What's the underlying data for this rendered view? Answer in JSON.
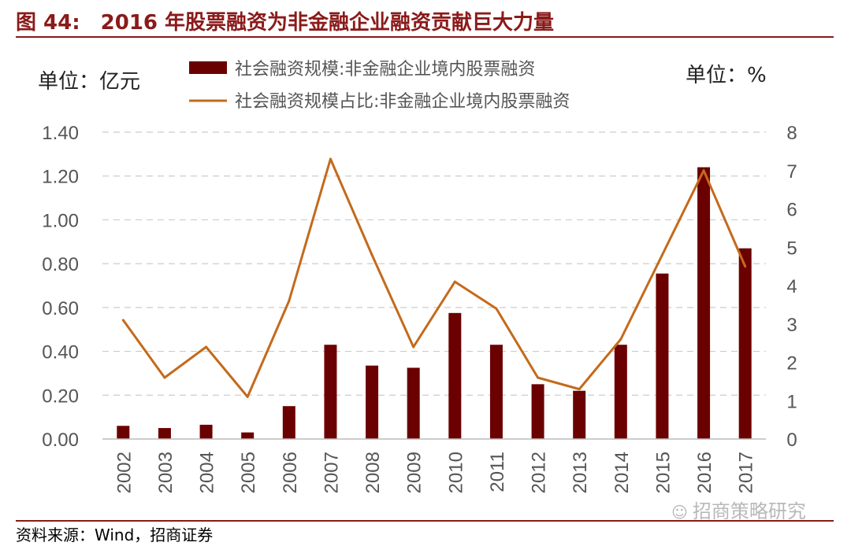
{
  "header": {
    "fig_label": "图 44:",
    "title": "2016 年股票融资为非金融企业融资贡献巨大力量"
  },
  "footer": {
    "source": "资料来源：Wind，招商证券",
    "watermark": "招商策略研究",
    "watermark_icon": "wechat-icon"
  },
  "colors": {
    "bar": "#6B0000",
    "line": "#C46A1C",
    "rule": "#8B1A1A",
    "grid": "#cccccc"
  },
  "chart_data": {
    "type": "bar+line",
    "categories": [
      "2002",
      "2003",
      "2004",
      "2005",
      "2006",
      "2007",
      "2008",
      "2009",
      "2010",
      "2011",
      "2012",
      "2013",
      "2014",
      "2015",
      "2016",
      "2017"
    ],
    "left_unit": "单位：亿元",
    "right_unit": "单位：%",
    "ylim_left": [
      0,
      1.4
    ],
    "yticks_left": [
      "0.00",
      "0.20",
      "0.40",
      "0.60",
      "0.80",
      "1.00",
      "1.20",
      "1.40"
    ],
    "ylim_right": [
      0,
      8
    ],
    "yticks_right": [
      "0",
      "1",
      "2",
      "3",
      "4",
      "5",
      "6",
      "7",
      "8"
    ],
    "grid": true,
    "legend_position": "top",
    "series": [
      {
        "name": "社会融资规模:非金融企业境内股票融资",
        "type": "bar",
        "axis": "left",
        "values": [
          0.06,
          0.05,
          0.065,
          0.03,
          0.15,
          0.43,
          0.335,
          0.325,
          0.575,
          0.43,
          0.25,
          0.22,
          0.43,
          0.755,
          1.24,
          0.87
        ]
      },
      {
        "name": "社会融资规模占比:非金融企业境内股票融资",
        "type": "line",
        "axis": "right",
        "values": [
          3.1,
          1.6,
          2.4,
          1.1,
          3.6,
          7.3,
          4.8,
          2.4,
          4.1,
          3.4,
          1.6,
          1.3,
          2.6,
          4.8,
          7.0,
          4.5
        ]
      }
    ]
  }
}
